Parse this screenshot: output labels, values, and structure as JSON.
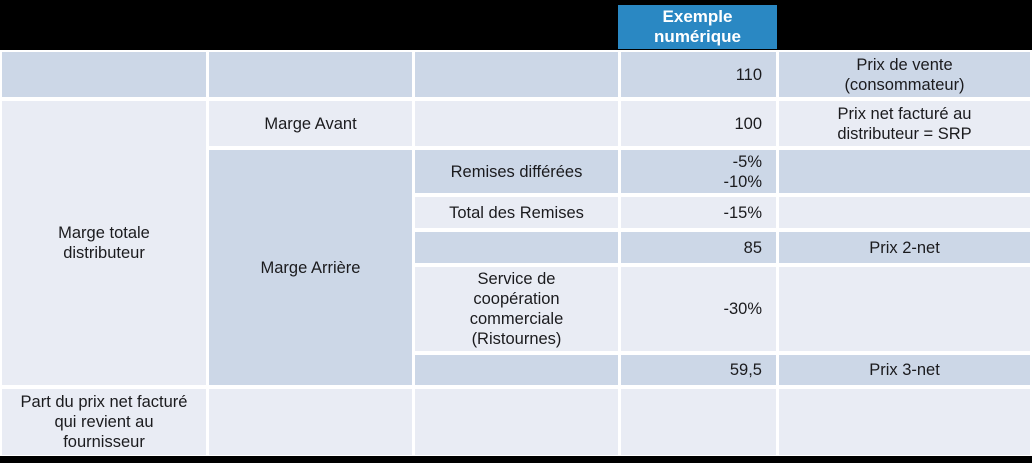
{
  "header": {
    "example_column_label": "Exemple numérique"
  },
  "groups": {
    "marge_totale": "Marge totale distributeur",
    "marge_arriere": "Marge Arrière"
  },
  "rows": {
    "prix_vente": {
      "value": "110",
      "note": "Prix de vente (consommateur)"
    },
    "marge_avant": {
      "label": "Marge Avant",
      "value": "100",
      "note": "Prix net facturé au distributeur = SRP"
    },
    "remises_differees": {
      "label": "Remises différées",
      "value_line1": "-5%",
      "value_line2": "-10%"
    },
    "total_remises": {
      "label": "Total des Remises",
      "value": "-15%"
    },
    "prix_2net": {
      "value": "85",
      "note": "Prix 2-net"
    },
    "service_cooperation": {
      "label": "Service de coopération commerciale (Ristournes)",
      "value": "-30%"
    },
    "prix_3net": {
      "value": "59,5",
      "note": "Prix 3-net"
    },
    "part_prix_net": {
      "label": "Part du prix net facturé qui revient au fournisseur"
    }
  },
  "colors": {
    "header_blue": "#2a88c3",
    "row_dark": "#ccd7e7",
    "row_light": "#e9ecf4",
    "page_black": "#000000",
    "text_dark": "#1b1b1e"
  }
}
